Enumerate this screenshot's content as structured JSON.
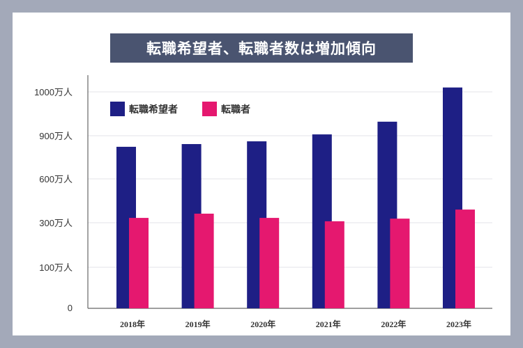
{
  "chart_data": {
    "type": "bar",
    "title": "転職希望者、転職者数は増加傾向",
    "categories": [
      "2018年",
      "2019年",
      "2020年",
      "2021年",
      "2022年",
      "2023年"
    ],
    "series": [
      {
        "name": "転職希望者",
        "color": "#1e1f85",
        "values": [
          823,
          842,
          861,
          903,
          932,
          1010
        ]
      },
      {
        "name": "転職者",
        "color": "#e5186f",
        "values": [
          333,
          362,
          333,
          310,
          328,
          390
        ]
      }
    ],
    "y_ticks": [
      0,
      100,
      300,
      600,
      900,
      1000
    ],
    "y_tick_labels": [
      "0",
      "100万人",
      "300万人",
      "600万人",
      "900万人",
      "1000万人"
    ],
    "y_scale": "non-uniform (equally spaced ticks)",
    "grid": true,
    "legend": "top-left"
  }
}
